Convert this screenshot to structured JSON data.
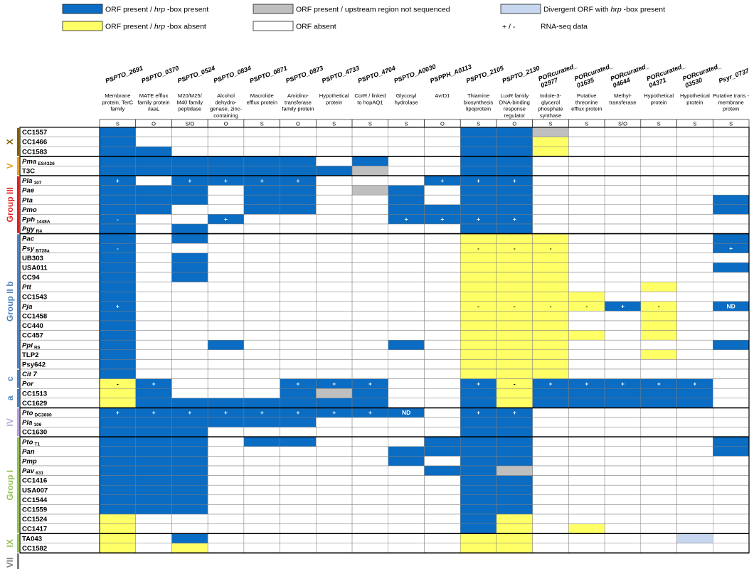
{
  "colors": {
    "present_hrp": "#0a6cc2",
    "hrp_absent": "#ffff66",
    "not_sequenced": "#bfbfbf",
    "divergent": "#c6d7ef",
    "absent": "#ffffff",
    "grid": "#7f7f7f"
  },
  "legend": [
    {
      "key": "B",
      "label_pre": "ORF present / ",
      "label_it": "hrp",
      "label_post": " -box present"
    },
    {
      "key": "G",
      "label_pre": "ORF present / upstream region not sequenced",
      "label_it": "",
      "label_post": ""
    },
    {
      "key": "L",
      "label_pre": "Divergent ORF with ",
      "label_it": "hrp",
      "label_post": " -box present"
    },
    {
      "key": "Y",
      "label_pre": "ORF present / ",
      "label_it": "hrp",
      "label_post": " -box absent"
    },
    {
      "key": "W",
      "label_pre": "ORF absent",
      "label_it": "",
      "label_post": ""
    },
    {
      "key": "+ / -",
      "label_pre": "RNA-seq data",
      "label_it": "",
      "label_post": ""
    }
  ],
  "columns": [
    {
      "gene": "PSPTO_2691",
      "desc": [
        "Membrane",
        "protein, TerC",
        "family"
      ],
      "so": "S"
    },
    {
      "gene": "PSPTO_0370",
      "desc": [
        "MATE efflux",
        "family protein",
        "/iaaL"
      ],
      "so": "O"
    },
    {
      "gene": "PSPTO_0524",
      "desc": [
        "M20/M25/",
        "M40 family",
        "peptidase"
      ],
      "so": "S/O"
    },
    {
      "gene": "PSPTO_0834",
      "desc": [
        "Alcohol",
        "dehydro-",
        "genase, zinc-",
        "containing"
      ],
      "so": "O"
    },
    {
      "gene": "PSPTO_0871",
      "desc": [
        "Macrolide",
        "efflux protein"
      ],
      "so": "S"
    },
    {
      "gene": "PSPTO_0873",
      "desc": [
        "Amidino-",
        "transferase",
        "family protein"
      ],
      "so": "O"
    },
    {
      "gene": "PSPTO_4733",
      "desc": [
        "Hypothetical",
        "protein"
      ],
      "so": "S"
    },
    {
      "gene": "PSPTO_4704",
      "desc": [
        "CorR / linked",
        "to hopAQ1"
      ],
      "so": "S"
    },
    {
      "gene": "PSPTO_A0030",
      "desc": [
        "Glycosyl",
        "hydrolase"
      ],
      "so": "S"
    },
    {
      "gene": "PSPPH_A0113",
      "desc": [
        "AvrD1"
      ],
      "so": "O"
    },
    {
      "gene": "PSPTO_2105",
      "desc": [
        "Thiamine",
        "biosynthesis",
        "lipoprotein"
      ],
      "so": "S"
    },
    {
      "gene": "PSPTO_2130",
      "desc": [
        "LuxR family",
        "DNA-binding",
        "response",
        "regulator"
      ],
      "so": "O"
    },
    {
      "gene": "PORcurated_02977",
      "desc": [
        "Indole-3-",
        "glycerol",
        "phosphate",
        "synthase"
      ],
      "so": "S"
    },
    {
      "gene": "PORcurated_01635",
      "desc": [
        "Putative",
        "threonine",
        "efflux protein"
      ],
      "so": "S"
    },
    {
      "gene": "PORcurated_04644",
      "desc": [
        "Methyl-",
        "transferase"
      ],
      "so": "S/O"
    },
    {
      "gene": "PORcurated_04371",
      "desc": [
        "Hypothetical",
        "protein"
      ],
      "so": "S"
    },
    {
      "gene": "PORcurated_03530",
      "desc": [
        "Hypothetical",
        "protein"
      ],
      "so": "S"
    },
    {
      "gene": "Psyr_0737",
      "desc": [
        "Putative trans -",
        "membrane",
        "protein"
      ],
      "so": "S"
    }
  ],
  "groups": [
    {
      "label": "X",
      "color": "#7f6000",
      "rows": [
        0,
        2
      ]
    },
    {
      "label": "V",
      "color": "#e6a020",
      "rows": [
        3,
        4
      ]
    },
    {
      "label": "Group III",
      "color": "#e02020",
      "rows": [
        5,
        10
      ]
    },
    {
      "label": "Group II b",
      "color": "#4f81bd",
      "rows": [
        11,
        24
      ]
    },
    {
      "label": "c",
      "color": "#4f81bd",
      "rows": [
        25,
        26
      ]
    },
    {
      "label": "a",
      "color": "#4f81bd",
      "rows": [
        27,
        28
      ]
    },
    {
      "label": "IV",
      "color": "#b4a0d8",
      "rows": [
        29,
        31
      ]
    },
    {
      "label": "Group I",
      "color": "#92c050",
      "rows": [
        32,
        41
      ]
    },
    {
      "label": "IX",
      "color": "#92c050",
      "rows": [
        42,
        43
      ]
    },
    {
      "label": "VII",
      "color": "#7f7f7f",
      "rows": [
        44,
        45
      ]
    }
  ],
  "rows": [
    {
      "name": "CC1557",
      "sub": "",
      "it": false,
      "cells": "BWWWWWWWWWBBGWWWWW",
      "marks": {}
    },
    {
      "name": "CC1466",
      "sub": "",
      "it": false,
      "cells": "BWWWWWWWWWBBYWWWWW",
      "marks": {}
    },
    {
      "name": "CC1583",
      "sub": "",
      "it": false,
      "cells": "BBWWWWWWWWBBYWWWWW",
      "marks": {}
    },
    {
      "name": "Pma",
      "sub": "ES4326",
      "it": true,
      "cells": "BBBBBBWBWWBBWWWWWW",
      "marks": {}
    },
    {
      "name": "T3C",
      "sub": "",
      "it": false,
      "cells": "BBBBBBBGWWBBWWWWWW",
      "marks": {}
    },
    {
      "name": "Pla",
      "sub": "107",
      "it": true,
      "cells": "BWBBBBWWWBBBWWWWWW",
      "marks": {
        "0": "+",
        "2": "+",
        "3": "+",
        "4": "+",
        "5": "+",
        "9": "+",
        "10": "+",
        "11": "+"
      }
    },
    {
      "name": "Pae",
      "sub": "",
      "it": true,
      "cells": "BBBWBBWGBWBBWWWWWW",
      "marks": {}
    },
    {
      "name": "Pta",
      "sub": "",
      "it": true,
      "cells": "BBBWBBWWBWBBWWWWWB",
      "marks": {}
    },
    {
      "name": "Pmo",
      "sub": "",
      "it": true,
      "cells": "BBWWBBWWBBBBWWWWWB",
      "marks": {}
    },
    {
      "name": "Pph",
      "sub": "1448A",
      "it": true,
      "cells": "BWWBWWWWBBBBWWWWWW",
      "marks": {
        "0": "-",
        "3": "+",
        "8": "+",
        "9": "+",
        "10": "+",
        "11": "+"
      }
    },
    {
      "name": "Pgy",
      "sub": "R4",
      "it": true,
      "cells": "BWBWWWWWWWBBWWWWWW",
      "marks": {}
    },
    {
      "name": "Pac",
      "sub": "",
      "it": true,
      "cells": "BWBWWWWWWWYYYWWWWB",
      "marks": {}
    },
    {
      "name": "Psy",
      "sub": "B728a",
      "it": true,
      "cells": "BWWWWWWWWWYYYWWWWB",
      "marks": {
        "0": "-",
        "10": "-",
        "11": "-",
        "12": "-",
        "17": "+"
      }
    },
    {
      "name": "UB303",
      "sub": "",
      "it": false,
      "cells": "BWBWWWWWWWYYYWWWWW",
      "marks": {}
    },
    {
      "name": "USA011",
      "sub": "",
      "it": false,
      "cells": "BWBWWWWWWWYYYWWWWB",
      "marks": {}
    },
    {
      "name": "CC94",
      "sub": "",
      "it": false,
      "cells": "BWBWWWWWWWYYYWWWWW",
      "marks": {}
    },
    {
      "name": "Ptt",
      "sub": "",
      "it": true,
      "cells": "BWWWWWWWWWYYYWWYWW",
      "marks": {}
    },
    {
      "name": "CC1543",
      "sub": "",
      "it": false,
      "cells": "BWWWWWWWWWYYYYWWWW",
      "marks": {}
    },
    {
      "name": "Pja",
      "sub": "",
      "it": true,
      "cells": "BWWWWWWWWWYYYYBYWB",
      "marks": {
        "0": "+",
        "10": "-",
        "11": "-",
        "12": "-",
        "13": "-",
        "14": "+",
        "15": "-",
        "17": "ND"
      }
    },
    {
      "name": "CC1458",
      "sub": "",
      "it": false,
      "cells": "BWWWWWWWWWYYYWWYWW",
      "marks": {}
    },
    {
      "name": "CC440",
      "sub": "",
      "it": false,
      "cells": "BWWWWWWWWWYYYWWYWW",
      "marks": {}
    },
    {
      "name": "CC457",
      "sub": "",
      "it": false,
      "cells": "BWWWWWWWWWYYYYWYWW",
      "marks": {}
    },
    {
      "name": "Ppi",
      "sub": "R6",
      "it": true,
      "cells": "BWWBWWWWBWYYYWWWWB",
      "marks": {}
    },
    {
      "name": "TLP2",
      "sub": "",
      "it": false,
      "cells": "BWWWWWWWWWYYYWWYWW",
      "marks": {}
    },
    {
      "name": "Psy642",
      "sub": "",
      "it": false,
      "cells": "BWWWWWWWWWYYYWWWWW",
      "marks": {}
    },
    {
      "name": "Cit 7",
      "sub": "",
      "it": true,
      "cells": "BWWWWWWWWWYYYWWWWW",
      "marks": {}
    },
    {
      "name": "Por",
      "sub": "",
      "it": true,
      "cells": "YBWWWBBBWWBYBBBBBW",
      "marks": {
        "0": "-",
        "1": "+",
        "5": "+",
        "6": "+",
        "7": "+",
        "10": "+",
        "11": "-",
        "12": "+",
        "13": "+",
        "14": "+",
        "15": "+",
        "16": "+"
      }
    },
    {
      "name": "CC1513",
      "sub": "",
      "it": false,
      "cells": "YBWWWBGBWWBYBBBBBW",
      "marks": {}
    },
    {
      "name": "CC1629",
      "sub": "",
      "it": false,
      "cells": "YBBBBBBBWWBYBBBBBW",
      "marks": {}
    },
    {
      "name": "Pto",
      "sub": "DC3000",
      "it": true,
      "cells": "BBBBBBBBBWBBWWWWWW",
      "marks": {
        "0": "+",
        "1": "+",
        "2": "+",
        "3": "+",
        "4": "+",
        "5": "+",
        "6": "+",
        "7": "+",
        "8": "ND",
        "10": "+",
        "11": "+"
      }
    },
    {
      "name": "Pla",
      "sub": "106",
      "it": true,
      "cells": "BBBBBBWWWWBBWWWWWW",
      "marks": {}
    },
    {
      "name": "CC1630",
      "sub": "",
      "it": false,
      "cells": "BBBWWWWWWWBBWWWWWW",
      "marks": {}
    },
    {
      "name": "Pto",
      "sub": "T1",
      "it": true,
      "cells": "BBBWBBWWWBBBWWWWWB",
      "marks": {}
    },
    {
      "name": "Pan",
      "sub": "",
      "it": true,
      "cells": "BBBWWWWWBBBBWWWWWB",
      "marks": {}
    },
    {
      "name": "Pmp",
      "sub": "",
      "it": true,
      "cells": "BBBWWWWWBWBBWWWWWW",
      "marks": {}
    },
    {
      "name": "Pav",
      "sub": "631",
      "it": true,
      "cells": "BBBWWWWWWBBGWWWWWW",
      "marks": {}
    },
    {
      "name": "CC1416",
      "sub": "",
      "it": false,
      "cells": "BBBWWWWWWWBBWWWWWW",
      "marks": {}
    },
    {
      "name": "USA007",
      "sub": "",
      "it": false,
      "cells": "BBBWWWWWWWBBWWWWWW",
      "marks": {}
    },
    {
      "name": "CC1544",
      "sub": "",
      "it": false,
      "cells": "BBBWWWWWWWBBWWWWWW",
      "marks": {}
    },
    {
      "name": "CC1559",
      "sub": "",
      "it": false,
      "cells": "BBBWWWWWWWBBWWWWWW",
      "marks": {}
    },
    {
      "name": "CC1524",
      "sub": "",
      "it": false,
      "cells": "YWWWWWWWWWBYWWWWWW",
      "marks": {}
    },
    {
      "name": "CC1417",
      "sub": "",
      "it": false,
      "cells": "YWWWWWWWWWBYWYWWWW",
      "marks": {}
    },
    {
      "name": "TA043",
      "sub": "",
      "it": false,
      "cells": "YWBWWWWWWWYYWWWWLW",
      "marks": {}
    },
    {
      "name": "CC1582",
      "sub": "",
      "it": false,
      "cells": "YWYWWWWWWWYYWWWWWW",
      "marks": {}
    }
  ]
}
